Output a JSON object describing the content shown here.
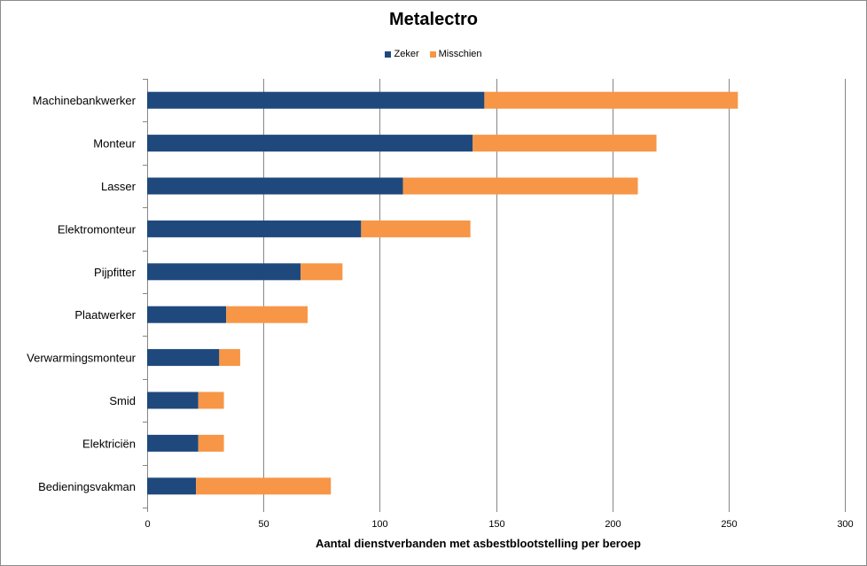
{
  "chart_data": {
    "type": "bar",
    "orientation": "horizontal",
    "stacked": true,
    "title": "Metalectro",
    "xlabel": "Aantal dienstverbanden met asbestblootstelling per beroep",
    "ylabel": "",
    "xlim": [
      0,
      300
    ],
    "xticks": [
      0,
      50,
      100,
      150,
      200,
      250,
      300
    ],
    "grid": "vertical",
    "legend_position": "top",
    "categories": [
      "Machinebankwerker",
      "Monteur",
      "Lasser",
      "Elektromonteur",
      "Pijpfitter",
      "Plaatwerker",
      "Verwarmingsmonteur",
      "Smid",
      "Elektriciën",
      "Bedieningsvakman"
    ],
    "series": [
      {
        "name": "Zeker",
        "color": "#1F497D",
        "values": [
          145,
          140,
          110,
          92,
          66,
          34,
          31,
          22,
          22,
          21
        ]
      },
      {
        "name": "Misschien",
        "color": "#F79646",
        "values": [
          109,
          79,
          101,
          47,
          18,
          35,
          9,
          11,
          11,
          58
        ]
      }
    ]
  }
}
